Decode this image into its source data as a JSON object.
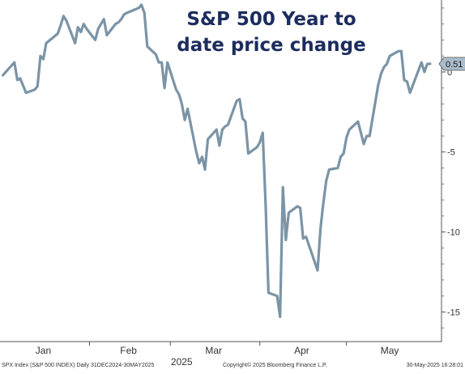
{
  "chart_data": {
    "type": "line",
    "title": "S&P 500 Year to date price change",
    "x_labels": [
      "Jan",
      "Feb",
      "Mar",
      "Apr",
      "May"
    ],
    "x_year_label": "2025",
    "y_ticks": [
      0,
      -5,
      -10,
      -15
    ],
    "ylim": [
      -16.5,
      4.5
    ],
    "grid": false,
    "last_value_label": "0.51",
    "series": [
      {
        "color": "#7b94a6",
        "x": [
          "2025-01-02",
          "2025-01-03",
          "2025-01-06",
          "2025-01-07",
          "2025-01-08",
          "2025-01-10",
          "2025-01-13",
          "2025-01-14",
          "2025-01-15",
          "2025-01-16",
          "2025-01-17",
          "2025-01-21",
          "2025-01-22",
          "2025-01-23",
          "2025-01-24",
          "2025-01-27",
          "2025-01-28",
          "2025-01-29",
          "2025-01-30",
          "2025-01-31",
          "2025-02-03",
          "2025-02-04",
          "2025-02-05",
          "2025-02-06",
          "2025-02-07",
          "2025-02-10",
          "2025-02-11",
          "2025-02-12",
          "2025-02-13",
          "2025-02-14",
          "2025-02-18",
          "2025-02-19",
          "2025-02-20",
          "2025-02-21",
          "2025-02-24",
          "2025-02-25",
          "2025-02-26",
          "2025-02-27",
          "2025-02-28",
          "2025-03-03",
          "2025-03-04",
          "2025-03-05",
          "2025-03-06",
          "2025-03-07",
          "2025-03-10",
          "2025-03-11",
          "2025-03-12",
          "2025-03-13",
          "2025-03-14",
          "2025-03-17",
          "2025-03-18",
          "2025-03-19",
          "2025-03-20",
          "2025-03-21",
          "2025-03-24",
          "2025-03-25",
          "2025-03-26",
          "2025-03-27",
          "2025-03-28",
          "2025-03-31",
          "2025-04-01",
          "2025-04-02",
          "2025-04-03",
          "2025-04-04",
          "2025-04-07",
          "2025-04-08",
          "2025-04-09",
          "2025-04-10",
          "2025-04-11",
          "2025-04-14",
          "2025-04-15",
          "2025-04-16",
          "2025-04-17",
          "2025-04-21",
          "2025-04-22",
          "2025-04-23",
          "2025-04-24",
          "2025-04-25",
          "2025-04-28",
          "2025-04-29",
          "2025-04-30",
          "2025-05-01",
          "2025-05-02",
          "2025-05-05",
          "2025-05-06",
          "2025-05-07",
          "2025-05-08",
          "2025-05-09",
          "2025-05-12",
          "2025-05-13",
          "2025-05-14",
          "2025-05-15",
          "2025-05-16",
          "2025-05-19",
          "2025-05-20",
          "2025-05-21",
          "2025-05-22",
          "2025-05-23",
          "2025-05-27",
          "2025-05-28",
          "2025-05-29",
          "2025-05-30"
        ],
        "y": [
          -0.2,
          0.0,
          0.6,
          -0.5,
          -0.4,
          -1.3,
          -1.1,
          -0.9,
          1.0,
          0.8,
          1.8,
          2.4,
          2.9,
          3.5,
          3.2,
          1.8,
          2.8,
          2.5,
          3.0,
          2.7,
          2.0,
          2.7,
          3.0,
          3.3,
          2.3,
          3.0,
          3.1,
          3.3,
          3.6,
          3.7,
          4.0,
          4.2,
          3.7,
          1.6,
          1.1,
          0.6,
          0.6,
          -1.0,
          0.6,
          -1.1,
          -1.4,
          -2.0,
          -3.0,
          -2.3,
          -5.0,
          -5.7,
          -5.3,
          -6.1,
          -4.2,
          -3.6,
          -4.6,
          -3.6,
          -3.4,
          -3.3,
          -1.8,
          -1.7,
          -2.9,
          -3.1,
          -5.1,
          -4.7,
          -4.4,
          -3.8,
          -8.3,
          -13.8,
          -14.0,
          -15.3,
          -7.2,
          -10.5,
          -8.8,
          -8.4,
          -8.5,
          -10.4,
          -10.3,
          -12.4,
          -9.8,
          -8.2,
          -6.8,
          -6.1,
          -6.0,
          -5.3,
          -5.1,
          -4.1,
          -3.6,
          -3.1,
          -3.8,
          -4.5,
          -4.0,
          -4.0,
          -0.8,
          -0.1,
          0.3,
          0.5,
          1.0,
          1.3,
          1.3,
          -0.5,
          -0.6,
          -1.3,
          0.6,
          0.0,
          0.5,
          0.51
        ]
      }
    ]
  },
  "footer": {
    "left": "SPX Index (S&P 500 INDEX)  Daily 31DEC2024-30MAY2025",
    "center": "Copyright© 2025 Bloomberg Finance L.P.",
    "right": "30-May-2025 16:28:01"
  }
}
